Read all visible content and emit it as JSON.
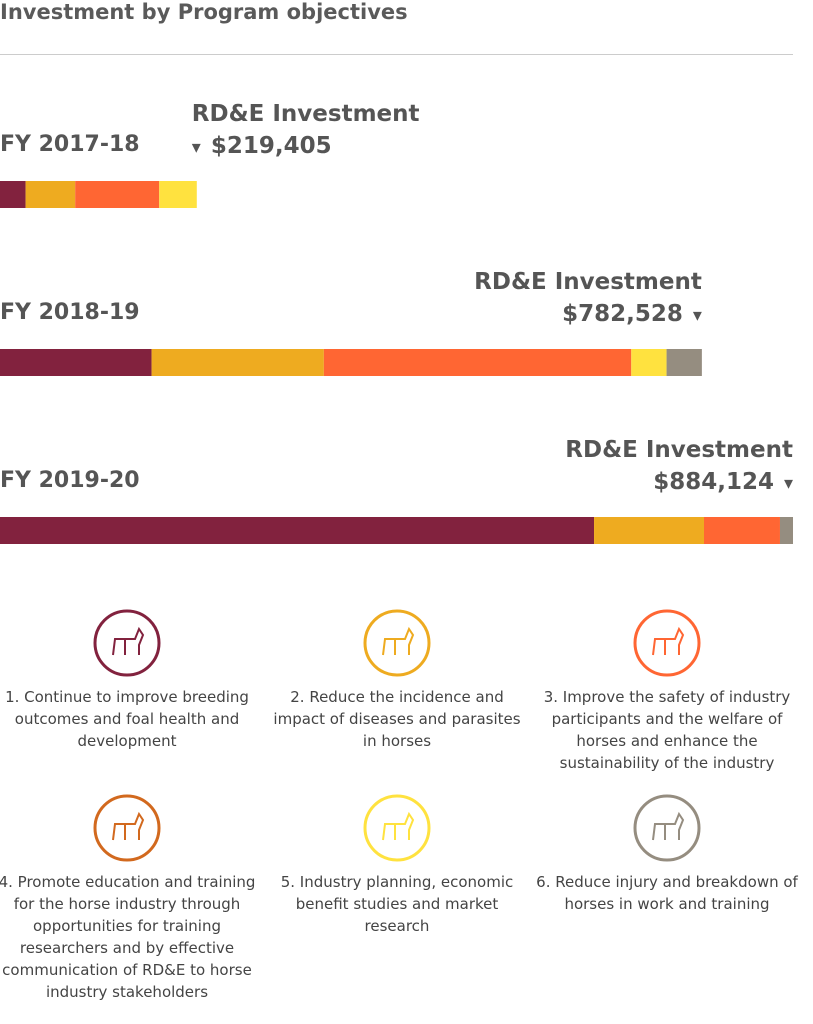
{
  "chart_data": {
    "type": "stacked-bar",
    "title": "Investment by Program objectives",
    "bars": [
      {
        "label": "FY 2017-18",
        "heading": "RD&E Investment",
        "total": "$219,405",
        "segments": [
          {
            "color": "#82223e",
            "value": 28530
          },
          {
            "color": "#eeab20",
            "value": 55290
          },
          {
            "color": "#ff6633",
            "value": 93690
          },
          {
            "color": "#ffe23f",
            "value": 41895
          }
        ]
      },
      {
        "label": "FY 2018-19",
        "heading": "RD&E Investment",
        "total": "$782,528",
        "segments": [
          {
            "color": "#82223e",
            "value": 169000
          },
          {
            "color": "#eeab20",
            "value": 192100
          },
          {
            "color": "#ff6633",
            "value": 342700
          },
          {
            "color": "#ffe23f",
            "value": 39364
          },
          {
            "color": "#958d80",
            "value": 39364
          }
        ]
      },
      {
        "label": "FY 2019-20",
        "heading": "RD&E Investment",
        "total": "$884,124",
        "segments": [
          {
            "color": "#82223e",
            "value": 662300
          },
          {
            "color": "#eeab20",
            "value": 122600
          },
          {
            "color": "#ff6633",
            "value": 84700
          },
          {
            "color": "#958d80",
            "value": 14524
          }
        ]
      }
    ],
    "objectives": [
      {
        "color": "#82223e",
        "text": "1. Continue to improve breeding outcomes and foal health and development"
      },
      {
        "color": "#eeab20",
        "text": "2. Reduce the incidence and impact of diseases and parasites in horses"
      },
      {
        "color": "#ff6633",
        "text": "3. Improve the safety of industry participants and the welfare of horses and enhance the sustainability of the industry"
      },
      {
        "color": "#d2691e",
        "text": "4. Promote education and training for the horse industry through opportunities for training researchers and by effective communication of RD&E to horse industry stakeholders"
      },
      {
        "color": "#ffe23f",
        "text": "5. Industry planning, economic benefit studies and market research"
      },
      {
        "color": "#958d80",
        "text": "6. Reduce injury and breakdown of horses in work and training"
      }
    ]
  }
}
